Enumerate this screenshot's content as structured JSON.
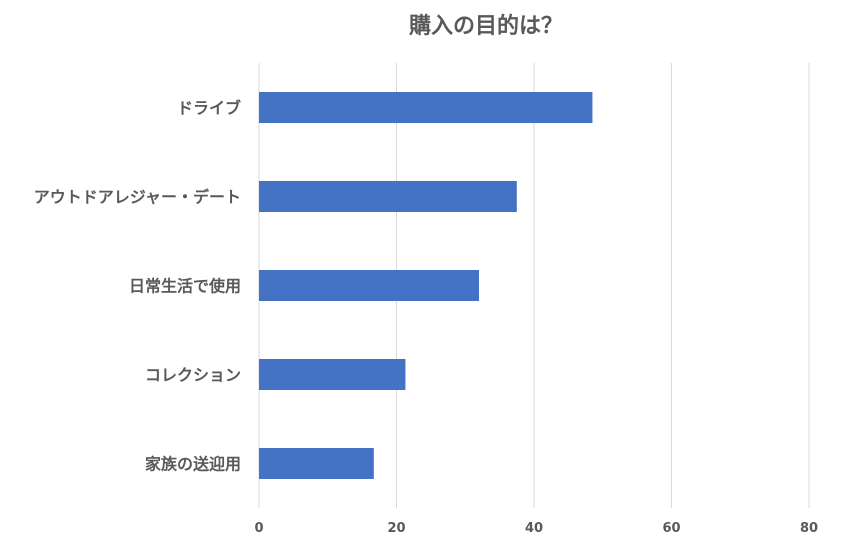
{
  "chart_data": {
    "type": "bar",
    "orientation": "horizontal",
    "title": "購入の目的は？",
    "categories": [
      "ドライブ",
      "アウトドアレジャー・デート",
      "日常生活で使用",
      "コレクション",
      "家族の送迎用"
    ],
    "series": [
      {
        "values": [
          48.5,
          37.5,
          32,
          21.3,
          16.7
        ],
        "color": "#4472c4"
      }
    ],
    "xlim": [
      0,
      80
    ],
    "x_ticks": [
      "0",
      "20",
      "40",
      "60",
      "80"
    ],
    "grid": true,
    "legend": "none"
  }
}
